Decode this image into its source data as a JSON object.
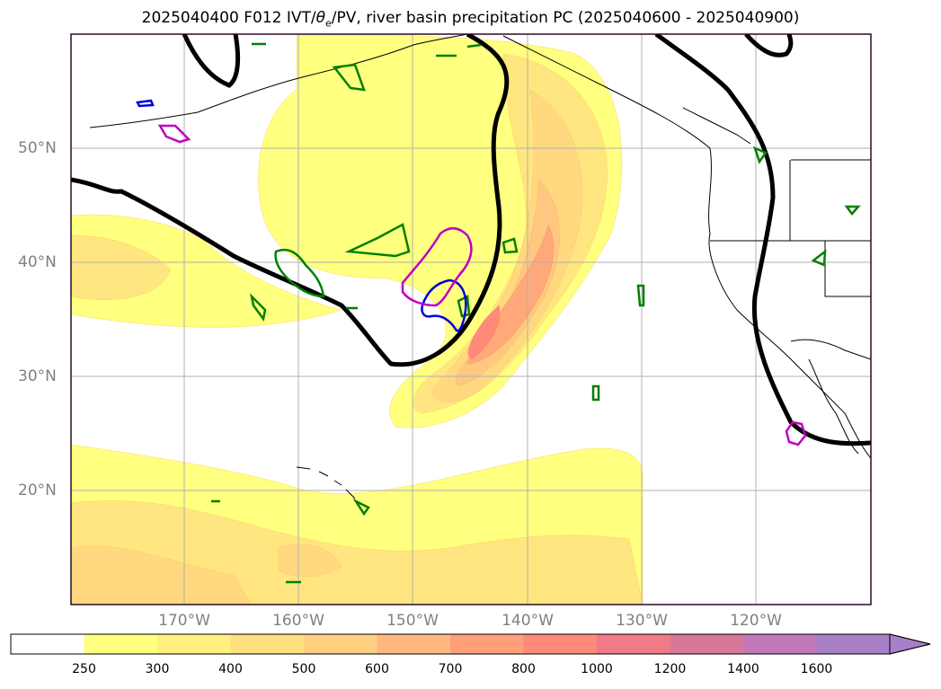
{
  "title": {
    "prefix": "2025040400 F012 IVT/",
    "theta": "θ",
    "sub": "e",
    "suffix": "/PV, river basin precipitation PC (2025040600 - 2025040900)"
  },
  "axes": {
    "lat_labels": [
      "50°N",
      "40°N",
      "30°N",
      "20°N"
    ],
    "lon_labels": [
      "170°W",
      "160°W",
      "150°W",
      "140°W",
      "130°W",
      "120°W"
    ]
  },
  "colorbar": {
    "labels": [
      "250",
      "300",
      "400",
      "500",
      "600",
      "700",
      "800",
      "1000",
      "1200",
      "1400",
      "1600"
    ],
    "colors": [
      "#ffffff",
      "#ffff80",
      "#fff080",
      "#ffe080",
      "#ffd080",
      "#ffb880",
      "#ffa07a",
      "#ff8a7a",
      "#ef7a88",
      "#d87898",
      "#c078b8",
      "#a880c8"
    ]
  },
  "chart_data": {
    "type": "map",
    "projection": "lat-lon",
    "lon_range": [
      -180,
      -110
    ],
    "lat_range": [
      10,
      60
    ],
    "field": "IVT",
    "contour_levels": [
      250,
      300,
      400,
      500,
      600,
      700,
      800,
      1000,
      1200,
      1400,
      1600
    ],
    "overlays": [
      "theta_e contour (black)",
      "PV contours (green/blue/magenta)"
    ],
    "grid": true
  },
  "colors": {
    "frame": "#2a0a2a",
    "grid": "#b0b0b0",
    "axis_text": "#808080",
    "contour_black": "#000000",
    "contour_green": "#008000",
    "contour_blue": "#0000dd",
    "contour_magenta": "#c000c0"
  }
}
